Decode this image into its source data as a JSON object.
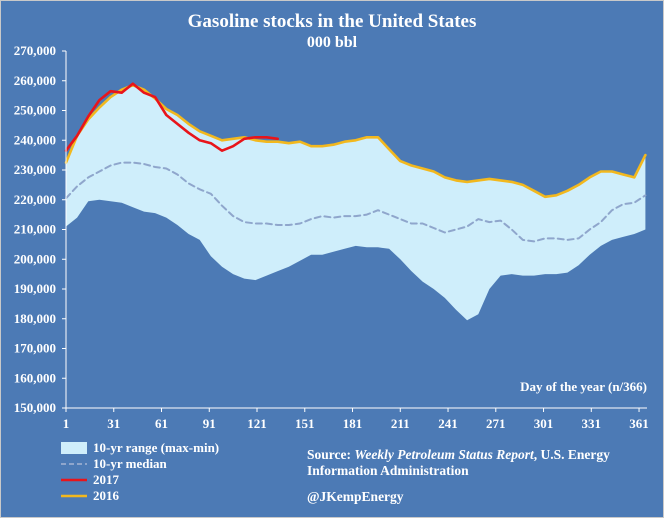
{
  "chart_data": {
    "type": "area",
    "title": "Gasoline stocks in the United States",
    "subtitle": "000 bbl",
    "xlabel": "Day of the year (n/366)",
    "ylabel": "",
    "xlim": [
      1,
      366
    ],
    "ylim": [
      150000,
      270000
    ],
    "x_ticks": [
      1,
      31,
      61,
      91,
      121,
      151,
      181,
      211,
      241,
      271,
      301,
      331,
      361
    ],
    "y_ticks": [
      150000,
      160000,
      170000,
      180000,
      190000,
      200000,
      210000,
      220000,
      230000,
      240000,
      250000,
      260000,
      270000
    ],
    "y_tick_labels": [
      "150,000",
      "160,000",
      "170,000",
      "180,000",
      "190,000",
      "200,000",
      "210,000",
      "220,000",
      "230,000",
      "240,000",
      "250,000",
      "260,000",
      "270,000"
    ],
    "grid": false,
    "legend_position": "bottom-left",
    "series": [
      {
        "name": "10-yr range (max-min)",
        "kind": "range",
        "color": "#cfeefb",
        "x": [
          1,
          8,
          15,
          22,
          29,
          36,
          43,
          50,
          57,
          64,
          71,
          78,
          85,
          92,
          99,
          106,
          113,
          120,
          127,
          134,
          141,
          148,
          155,
          162,
          169,
          176,
          183,
          190,
          197,
          204,
          211,
          218,
          225,
          232,
          239,
          246,
          253,
          260,
          267,
          274,
          281,
          288,
          295,
          302,
          309,
          316,
          323,
          330,
          337,
          344,
          351,
          358,
          365
        ],
        "max": [
          232500,
          241500,
          247000,
          251000,
          254500,
          257000,
          258500,
          257000,
          254000,
          250500,
          248500,
          245500,
          243000,
          241500,
          240000,
          240500,
          241000,
          240000,
          239500,
          239500,
          239000,
          239500,
          238000,
          238000,
          238500,
          239500,
          240000,
          241000,
          241000,
          237000,
          233000,
          231500,
          230500,
          229500,
          227500,
          226500,
          226000,
          226500,
          227000,
          226500,
          226000,
          225000,
          223000,
          221000,
          221500,
          223000,
          225000,
          227500,
          229500,
          229500,
          228500,
          227500,
          235000
        ],
        "min": [
          211000,
          214000,
          219500,
          220000,
          219500,
          219000,
          217500,
          216000,
          215500,
          214000,
          211500,
          208500,
          206500,
          201000,
          197500,
          195000,
          193500,
          193000,
          194500,
          196000,
          197500,
          199500,
          201500,
          201500,
          202500,
          203500,
          204500,
          204000,
          204000,
          203500,
          200000,
          196000,
          192500,
          190000,
          187000,
          183000,
          179500,
          181500,
          190000,
          194500,
          195000,
          194500,
          194500,
          195000,
          195000,
          195500,
          198000,
          201500,
          204500,
          206500,
          207500,
          208500,
          210000
        ]
      },
      {
        "name": "10-yr median",
        "kind": "dashed",
        "color": "#8fa6cc",
        "x": [
          1,
          8,
          15,
          22,
          29,
          36,
          43,
          50,
          57,
          64,
          71,
          78,
          85,
          92,
          99,
          106,
          113,
          120,
          127,
          134,
          141,
          148,
          155,
          162,
          169,
          176,
          183,
          190,
          197,
          204,
          211,
          218,
          225,
          232,
          239,
          246,
          253,
          260,
          267,
          274,
          281,
          288,
          295,
          302,
          309,
          316,
          323,
          330,
          337,
          344,
          351,
          358,
          365
        ],
        "values": [
          220500,
          224500,
          227500,
          229500,
          231500,
          232500,
          232500,
          232000,
          231000,
          230500,
          228500,
          225500,
          223500,
          222000,
          218000,
          214500,
          212500,
          212000,
          212000,
          211500,
          211500,
          212000,
          213500,
          214500,
          214000,
          214500,
          214500,
          215000,
          216500,
          215000,
          213500,
          212000,
          212000,
          210500,
          209000,
          210000,
          211000,
          213500,
          212500,
          213000,
          210000,
          206500,
          206000,
          207000,
          207000,
          206500,
          207000,
          210000,
          212500,
          216500,
          218500,
          219000,
          221500
        ]
      },
      {
        "name": "2017",
        "kind": "line",
        "color": "#e8141a",
        "x": [
          1,
          8,
          15,
          22,
          29,
          36,
          43,
          50,
          57,
          64,
          71,
          78,
          85,
          92,
          99,
          106,
          113,
          120,
          127,
          134
        ],
        "values": [
          236500,
          241500,
          248000,
          253500,
          256500,
          256000,
          259000,
          256000,
          254500,
          248500,
          245500,
          242500,
          240000,
          239000,
          236500,
          238000,
          240500,
          241000,
          241000,
          240500
        ]
      },
      {
        "name": "2016",
        "kind": "line",
        "color": "#f2b81e",
        "x": [
          1,
          8,
          15,
          22,
          29,
          36,
          43,
          50,
          57,
          64,
          71,
          78,
          85,
          92,
          99,
          106,
          113,
          120,
          127,
          134,
          141,
          148,
          155,
          162,
          169,
          176,
          183,
          190,
          197,
          204,
          211,
          218,
          225,
          232,
          239,
          246,
          253,
          260,
          267,
          274,
          281,
          288,
          295,
          302,
          309,
          316,
          323,
          330,
          337,
          344,
          351,
          358,
          365
        ],
        "values": [
          232500,
          241500,
          247000,
          251000,
          254500,
          257000,
          258500,
          257000,
          254000,
          250500,
          248500,
          245500,
          243000,
          241500,
          240000,
          240500,
          241000,
          240000,
          239500,
          239500,
          239000,
          239500,
          238000,
          238000,
          238500,
          239500,
          240000,
          241000,
          241000,
          237000,
          233000,
          231500,
          230500,
          229500,
          227500,
          226500,
          226000,
          226500,
          227000,
          226500,
          226000,
          225000,
          223000,
          221000,
          221500,
          223000,
          225000,
          227500,
          229500,
          229500,
          228500,
          227500,
          235000
        ]
      }
    ],
    "legend": [
      {
        "label": "10-yr range (max-min)",
        "symbol": "box",
        "color": "#cfeefb"
      },
      {
        "label": "10-yr median",
        "symbol": "dash",
        "color": "#8fa6cc"
      },
      {
        "label": "2017",
        "symbol": "line",
        "color": "#e8141a"
      },
      {
        "label": "2016",
        "symbol": "line",
        "color": "#f2b81e"
      }
    ]
  },
  "source": {
    "prefix": "Source: ",
    "italic": "Weekly Petroleum Status Report",
    "line1_suffix": ", U.S. Energy",
    "line2": "Information Administration"
  },
  "credit": "@JKempEnergy",
  "colors": {
    "background": "#4c7ab5",
    "text": "#ffffff",
    "axis": "#ffffff"
  }
}
